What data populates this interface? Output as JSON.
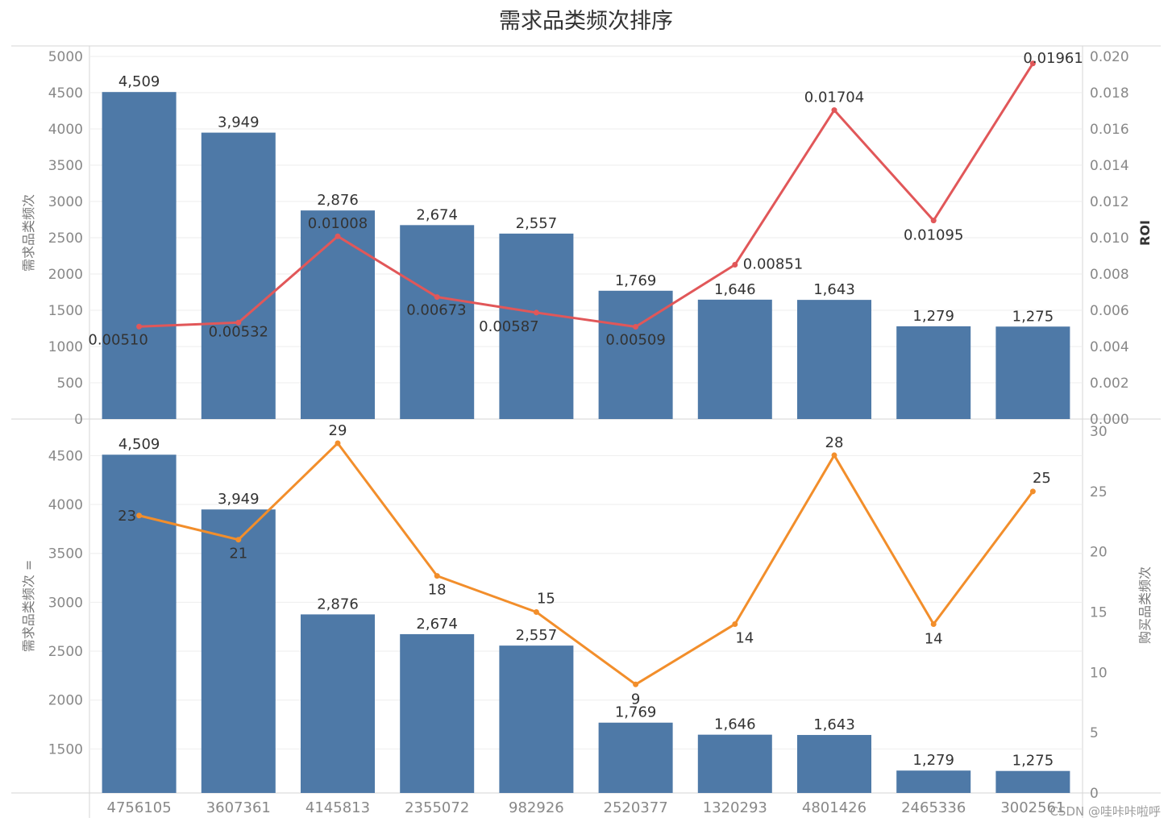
{
  "title": "需求品类频次排序",
  "watermark": "CSDN @哇咔咔啦呼",
  "colors": {
    "bar": "#4e79a7",
    "roi_line": "#e15759",
    "buy_line": "#f28e2b",
    "axis_text": "#888888",
    "label_text": "#333333",
    "grid": "#eeeeee"
  },
  "chart_data": [
    {
      "type": "bar",
      "categories": [
        "4756105",
        "3607361",
        "4145813",
        "2355072",
        "982926",
        "2520377",
        "1320293",
        "4801426",
        "2465336",
        "3002561"
      ],
      "ylabel": "需求品类频次",
      "ylim": [
        0,
        5000
      ],
      "yticks": [
        "0",
        "500",
        "1000",
        "1500",
        "2000",
        "2500",
        "3000",
        "3500",
        "4000",
        "4500",
        "5000"
      ],
      "series": [
        {
          "values": [
            4509,
            3949,
            2876,
            2674,
            2557,
            1769,
            1646,
            1643,
            1279,
            1275
          ],
          "labels": [
            "4,509",
            "3,949",
            "2,876",
            "2,674",
            "2,557",
            "1,769",
            "1,646",
            "1,643",
            "1,279",
            "1,275"
          ]
        },
        {
          "type": "line",
          "values": [
            0.0051,
            0.00532,
            0.01008,
            0.00673,
            0.00587,
            0.00509,
            0.00851,
            0.01704,
            0.01095,
            0.01961
          ],
          "labels": [
            "0.00510",
            "0.00532",
            "0.01008",
            "0.00673",
            "0.00587",
            "0.00509",
            "0.00851",
            "0.01704",
            "0.01095",
            "0.01961"
          ]
        }
      ],
      "y2label": "ROI",
      "y2lim": [
        0,
        0.02
      ],
      "y2ticks": [
        "0.000",
        "0.002",
        "0.004",
        "0.006",
        "0.008",
        "0.010",
        "0.012",
        "0.014",
        "0.016",
        "0.018",
        "0.020"
      ]
    },
    {
      "type": "bar",
      "categories": [
        "4756105",
        "3607361",
        "4145813",
        "2355072",
        "982926",
        "2520377",
        "1320293",
        "4801426",
        "2465336",
        "3002561"
      ],
      "xticks": [
        "4756105",
        "3607361",
        "4145813",
        "2355072",
        "982926",
        "2520377",
        "1320293",
        "4801426",
        "2465336",
        "3002561"
      ],
      "ylabel": "需求品类频次 =",
      "ylim": [
        1050,
        4750
      ],
      "yticks": [
        "1500",
        "2000",
        "2500",
        "3000",
        "3500",
        "4000",
        "4500"
      ],
      "series": [
        {
          "values": [
            4509,
            3949,
            2876,
            2674,
            2557,
            1769,
            1646,
            1643,
            1279,
            1275
          ],
          "labels": [
            "4,509",
            "3,949",
            "2,876",
            "2,674",
            "2,557",
            "1,769",
            "1,646",
            "1,643",
            "1,279",
            "1,275"
          ]
        },
        {
          "type": "line",
          "values": [
            23,
            21,
            29,
            18,
            15,
            9,
            14,
            28,
            14,
            25
          ],
          "labels": [
            "23",
            "21",
            "29",
            "18",
            "15",
            "9",
            "14",
            "28",
            "14",
            "25"
          ]
        }
      ],
      "y2label": "购买品类频次",
      "y2lim": [
        0,
        30
      ],
      "y2ticks": [
        "0",
        "5",
        "10",
        "15",
        "20",
        "25",
        "30"
      ]
    }
  ]
}
